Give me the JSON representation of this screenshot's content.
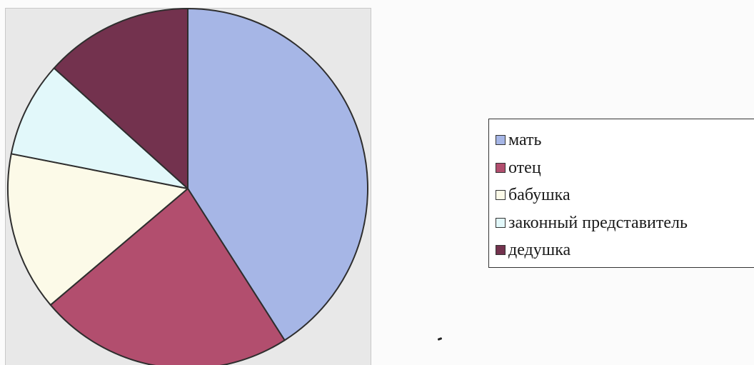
{
  "chart_data": {
    "type": "pie",
    "title": "",
    "series": [
      {
        "values": [
          43,
          24,
          15,
          9,
          14
        ]
      }
    ],
    "categories": [
      "мать",
      "отец",
      "бабушка",
      "законный представитель",
      "дедушка"
    ],
    "colors": [
      "#a6b6e6",
      "#b24e6e",
      "#fcfae8",
      "#e2f8fa",
      "#73324e"
    ],
    "start_angle_deg": 0,
    "direction": "clockwise",
    "legend_position": "right"
  }
}
